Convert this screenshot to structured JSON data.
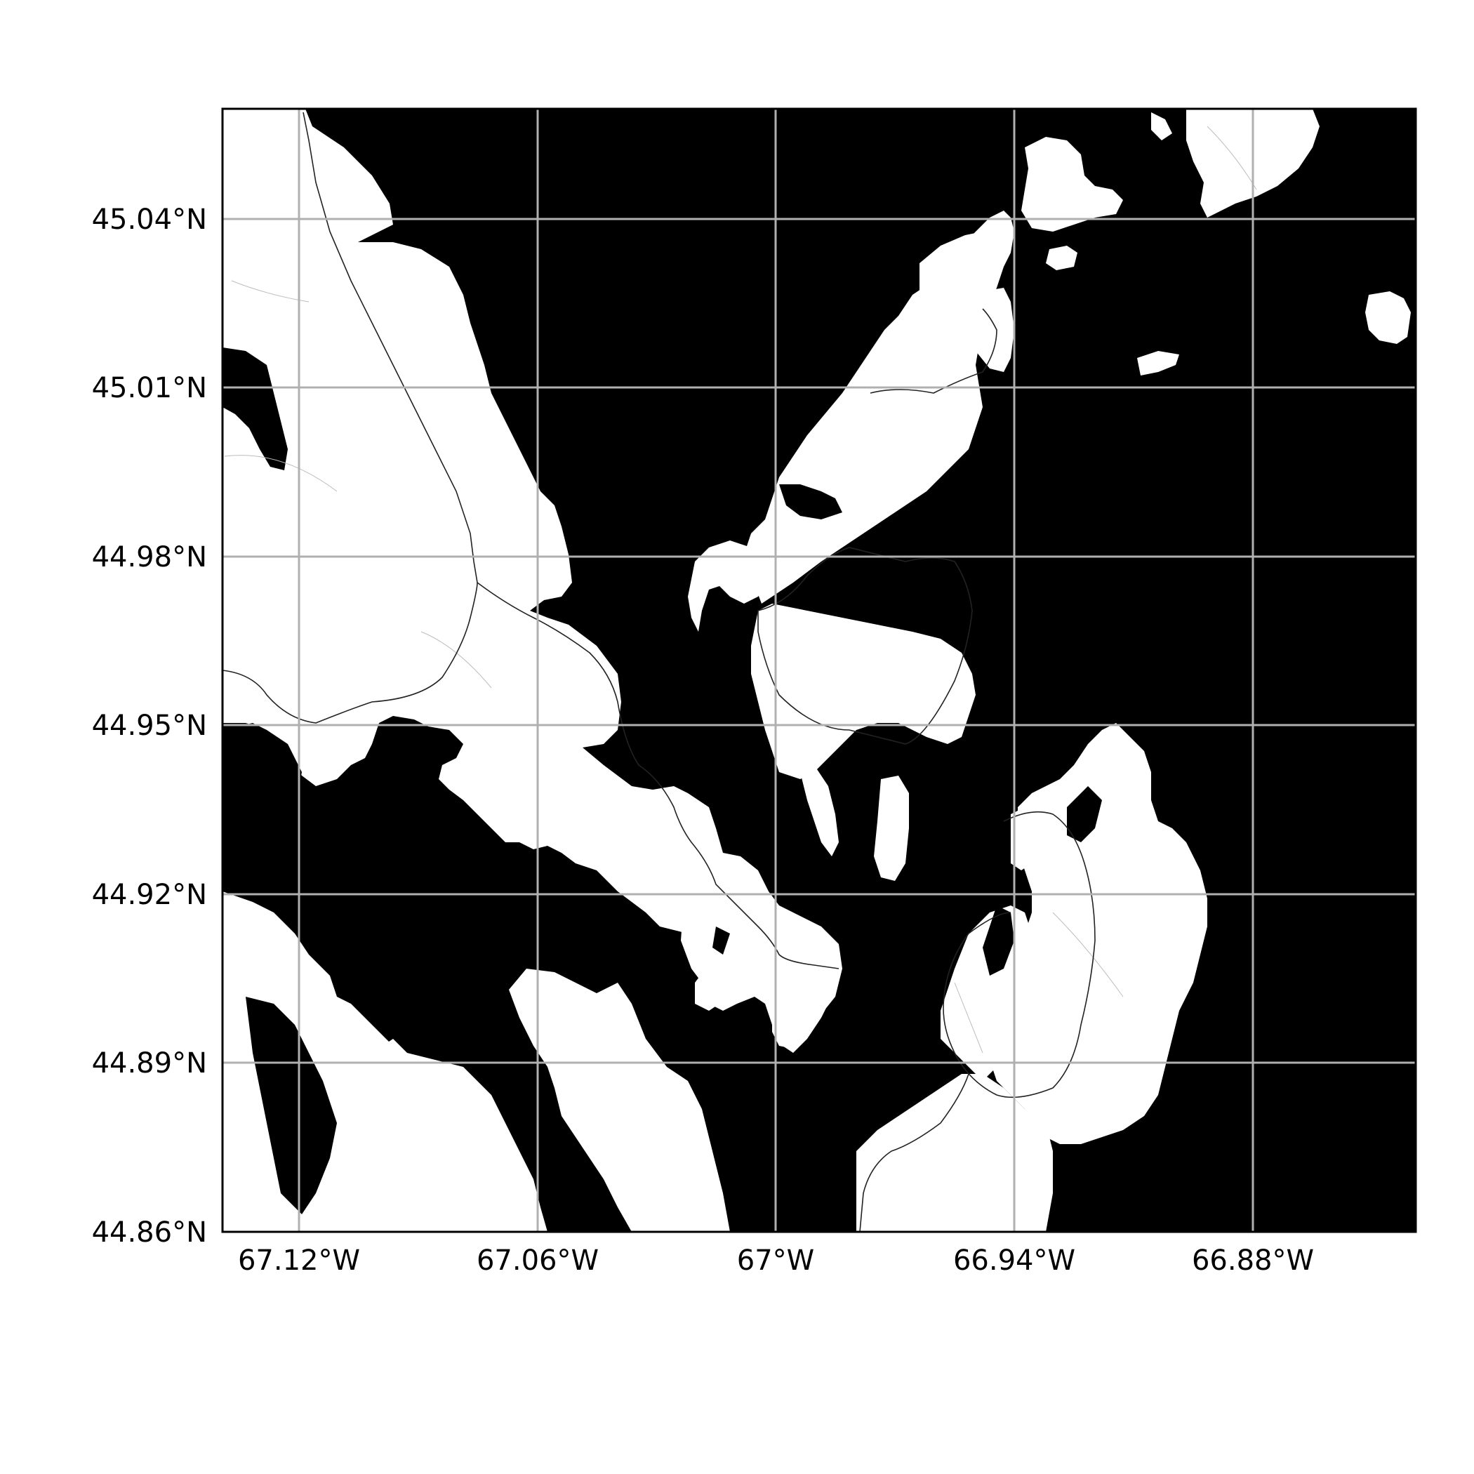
{
  "map": {
    "x_ticks": [
      {
        "value": -67.12,
        "label": "67.12°W"
      },
      {
        "value": -67.06,
        "label": "67.06°W"
      },
      {
        "value": -67.0,
        "label": "67°W"
      },
      {
        "value": -66.94,
        "label": "66.94°W"
      },
      {
        "value": -66.88,
        "label": "66.88°W"
      }
    ],
    "y_ticks": [
      {
        "value": 45.04,
        "label": "45.04°N"
      },
      {
        "value": 45.01,
        "label": "45.01°N"
      },
      {
        "value": 44.98,
        "label": "44.98°N"
      },
      {
        "value": 44.95,
        "label": "44.95°N"
      },
      {
        "value": 44.92,
        "label": "44.92°N"
      },
      {
        "value": 44.89,
        "label": "44.89°N"
      },
      {
        "value": 44.86,
        "label": "44.86°N"
      }
    ],
    "colors": {
      "water": "#000000",
      "land": "#ffffff",
      "grid": "#b0b0b0",
      "frame": "#000000"
    },
    "grid": true
  }
}
